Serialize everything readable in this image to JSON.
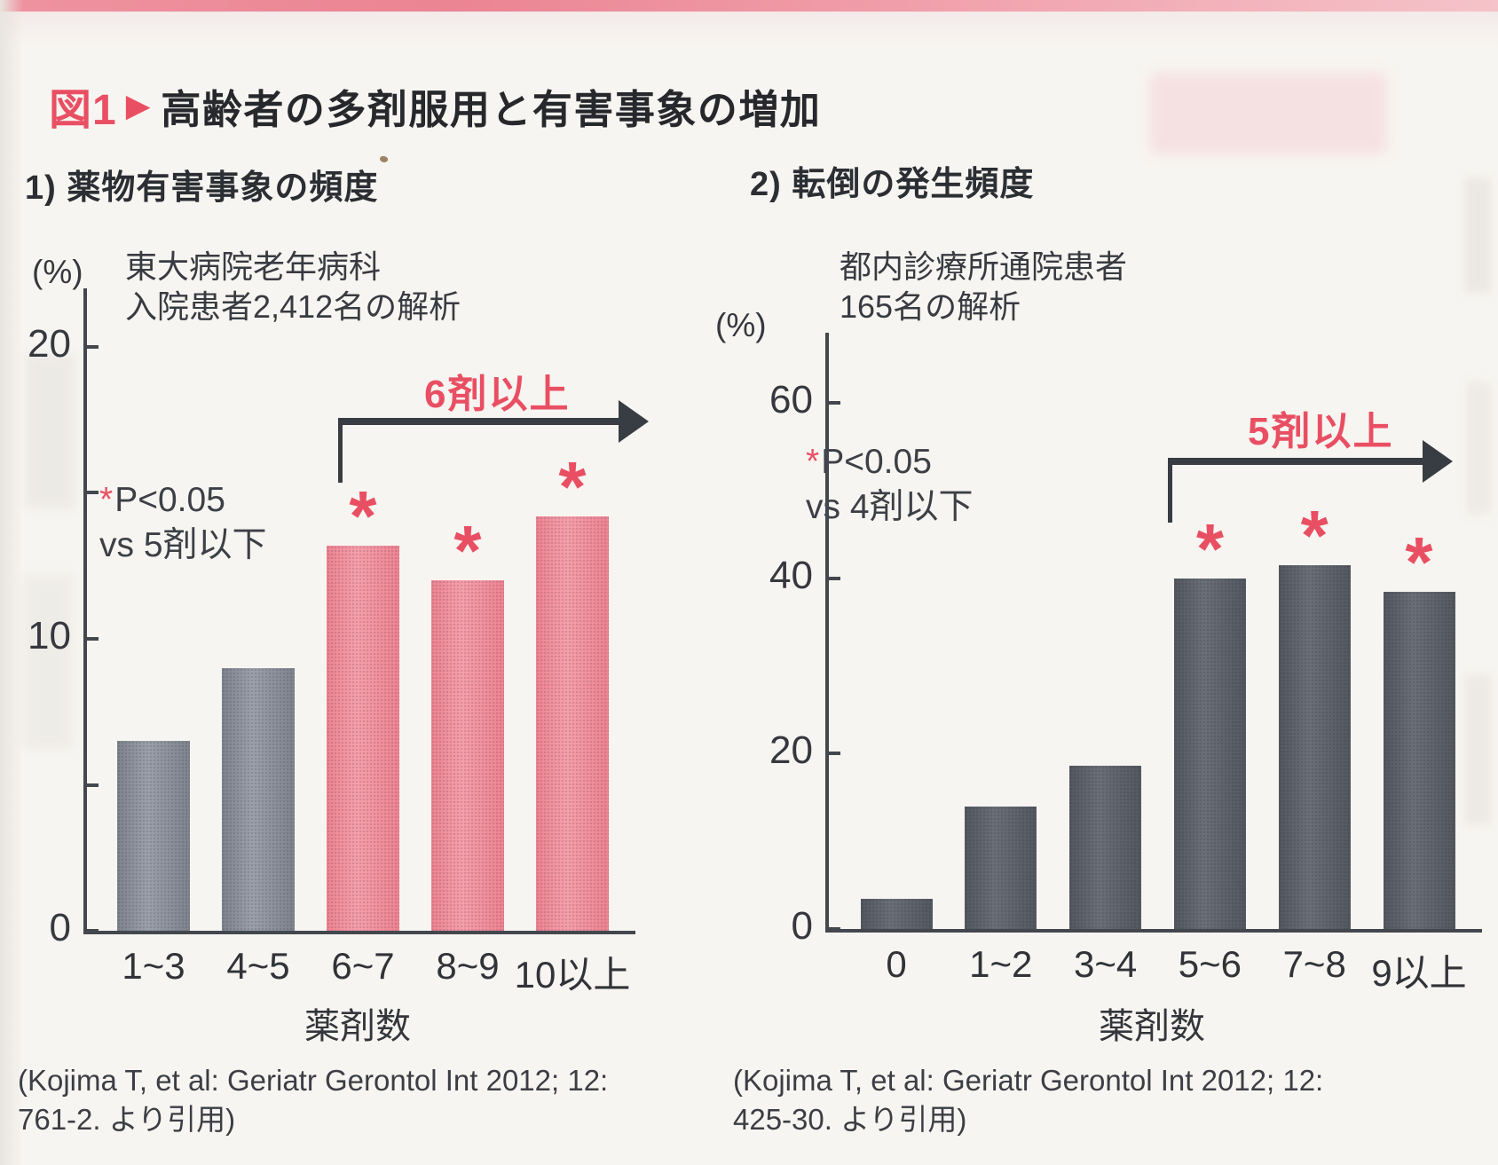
{
  "page": {
    "figure_tag": "図1",
    "figure_arrow": "▶",
    "title": "高齢者の多剤服用と有害事象の増加"
  },
  "colors": {
    "accent_red": "#e94f63",
    "axis": "#43474e",
    "arrow": "#383c43",
    "bar_gray": {
      "light": "#9ba1aa",
      "dark": "#7e848e"
    },
    "bar_pink": {
      "light": "#f79fab",
      "dark": "#ee8392"
    },
    "bar_dark": {
      "light": "#6a6f78",
      "dark": "#53575f"
    }
  },
  "star_marker": "*",
  "chart_data": [
    {
      "type": "bar",
      "title": "1) 薬物有害事象の頻度",
      "annotation_lines": [
        "東大病院老年病科",
        "入院患者2,412名の解析"
      ],
      "ylabel_unit": "(%)",
      "categories": [
        "1~3",
        "4~5",
        "6~7",
        "8~9",
        "10以上"
      ],
      "values": [
        6.5,
        9.0,
        13.2,
        12.0,
        14.2
      ],
      "starred": [
        false,
        false,
        true,
        true,
        true
      ],
      "bar_color_keys": [
        "bar_gray",
        "bar_gray",
        "bar_pink",
        "bar_pink",
        "bar_pink"
      ],
      "group_arrow_label": "6剤以上",
      "sig_star": "*",
      "sig_p": "P<0.05",
      "sig_vs": "vs 5剤以下",
      "xlabel": "薬剤数",
      "ylim": [
        0,
        22
      ],
      "yticks": [
        0,
        5,
        10,
        15,
        20
      ],
      "ytick_labeled": [
        0,
        10,
        20
      ],
      "grid": false,
      "citation_lines": [
        "(Kojima T, et al: Geriatr Gerontol Int 2012; 12:",
        "761-2. より引用)"
      ]
    },
    {
      "type": "bar",
      "title": "2) 転倒の発生頻度",
      "annotation_lines": [
        "都内診療所通院患者",
        "165名の解析"
      ],
      "ylabel_unit": "(%)",
      "categories": [
        "0",
        "1~2",
        "3~4",
        "5~6",
        "7~8",
        "9以上"
      ],
      "values": [
        3.4,
        14.0,
        18.6,
        40.0,
        41.5,
        38.5
      ],
      "starred": [
        false,
        false,
        false,
        true,
        true,
        true
      ],
      "bar_color_keys": [
        "bar_dark",
        "bar_dark",
        "bar_dark",
        "bar_dark",
        "bar_dark",
        "bar_dark"
      ],
      "group_arrow_label": "5剤以上",
      "sig_star": "*",
      "sig_p": "P<0.05",
      "sig_vs": "vs 4剤以下",
      "xlabel": "薬剤数",
      "ylim": [
        0,
        68
      ],
      "yticks": [
        0,
        20,
        40,
        60
      ],
      "ytick_labeled": [
        0,
        20,
        40,
        60
      ],
      "grid": false,
      "citation_lines": [
        "(Kojima T, et al: Geriatr Gerontol Int 2012; 12:",
        "425-30. より引用)"
      ]
    }
  ]
}
